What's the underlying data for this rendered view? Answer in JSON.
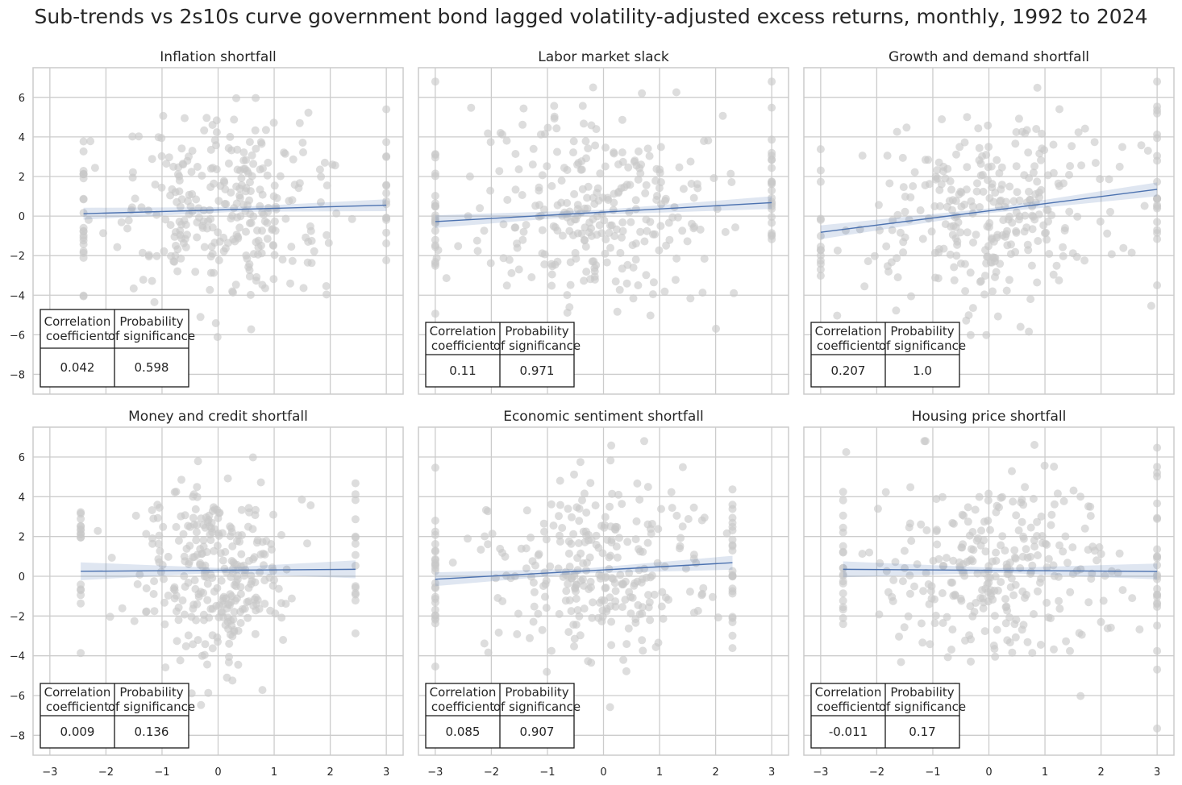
{
  "title": "Sub-trends vs 2s10s curve government bond lagged volatility-adjusted excess returns, monthly, 1992 to 2024",
  "colors": {
    "background": "#ffffff",
    "grid": "#cccccc",
    "frame": "#cccccc",
    "scatter": "#c8c8c8",
    "regression_line": "#4c72b0",
    "confidence_band": "#4c72b0",
    "table_border": "#1a1a1a"
  },
  "table_headers": [
    "Correlation\ncoefficient",
    "Probability\nof significance"
  ],
  "chart_data": [
    {
      "type": "scatter",
      "title": "Inflation shortfall",
      "xlim": [
        -3.3,
        3.3
      ],
      "ylim": [
        -9,
        7.5
      ],
      "xticks": [
        -3,
        -2,
        -1,
        0,
        1,
        2,
        3
      ],
      "yticks": [
        -8,
        -6,
        -4,
        -2,
        0,
        2,
        4,
        6
      ],
      "x_range": [
        -2.4,
        3.0
      ],
      "slope": 0.08,
      "intercept": 0.3,
      "spread_x": 1.0,
      "regression": {
        "x": [
          -2.4,
          3.0
        ],
        "y": [
          0.12,
          0.55
        ]
      },
      "ci_halfwidth": [
        0.3,
        0.12,
        0.3
      ],
      "table": {
        "correlation": "0.042",
        "probability": "0.598"
      },
      "table_pos": "lower-left-high"
    },
    {
      "type": "scatter",
      "title": "Labor market slack",
      "xlim": [
        -3.3,
        3.3
      ],
      "ylim": [
        -9,
        7.5
      ],
      "xticks": [
        -3,
        -2,
        -1,
        0,
        1,
        2,
        3
      ],
      "yticks": [
        -8,
        -6,
        -4,
        -2,
        0,
        2,
        4,
        6
      ],
      "x_range": [
        -3.0,
        3.0
      ],
      "slope": 0.16,
      "intercept": 0.2,
      "spread_x": 1.2,
      "regression": {
        "x": [
          -3.0,
          3.0
        ],
        "y": [
          -0.28,
          0.68
        ]
      },
      "ci_halfwidth": [
        0.32,
        0.12,
        0.32
      ],
      "table": {
        "correlation": "0.11",
        "probability": "0.971"
      },
      "table_pos": "lower-left"
    },
    {
      "type": "scatter",
      "title": "Growth and demand shortfall",
      "xlim": [
        -3.3,
        3.3
      ],
      "ylim": [
        -9,
        7.5
      ],
      "xticks": [
        -3,
        -2,
        -1,
        0,
        1,
        2,
        3
      ],
      "yticks": [
        -8,
        -6,
        -4,
        -2,
        0,
        2,
        4,
        6
      ],
      "x_range": [
        -3.0,
        3.0
      ],
      "slope": 0.36,
      "intercept": 0.25,
      "spread_x": 1.2,
      "regression": {
        "x": [
          -3.0,
          3.0
        ],
        "y": [
          -0.82,
          1.35
        ]
      },
      "ci_halfwidth": [
        0.35,
        0.12,
        0.35
      ],
      "table": {
        "correlation": "0.207",
        "probability": "1.0"
      },
      "table_pos": "lower-left"
    },
    {
      "type": "scatter",
      "title": "Money and credit shortfall",
      "xlim": [
        -3.3,
        3.3
      ],
      "ylim": [
        -9,
        7.5
      ],
      "xticks": [
        -3,
        -2,
        -1,
        0,
        1,
        2,
        3
      ],
      "yticks": [
        -8,
        -6,
        -4,
        -2,
        0,
        2,
        4,
        6
      ],
      "x_range": [
        -2.45,
        2.45
      ],
      "slope": 0.02,
      "intercept": 0.3,
      "spread_x": 0.7,
      "regression": {
        "x": [
          -2.45,
          2.45
        ],
        "y": [
          0.25,
          0.35
        ]
      },
      "ci_halfwidth": [
        0.45,
        0.12,
        0.45
      ],
      "table": {
        "correlation": "0.009",
        "probability": "0.136"
      },
      "table_pos": "lower-left"
    },
    {
      "type": "scatter",
      "title": "Economic sentiment shortfall",
      "xlim": [
        -3.3,
        3.3
      ],
      "ylim": [
        -9,
        7.5
      ],
      "xticks": [
        -3,
        -2,
        -1,
        0,
        1,
        2,
        3
      ],
      "yticks": [
        -8,
        -6,
        -4,
        -2,
        0,
        2,
        4,
        6
      ],
      "x_range": [
        -3.0,
        2.3
      ],
      "slope": 0.15,
      "intercept": 0.3,
      "spread_x": 1.1,
      "regression": {
        "x": [
          -3.0,
          2.3
        ],
        "y": [
          -0.15,
          0.68
        ]
      },
      "ci_halfwidth": [
        0.35,
        0.12,
        0.35
      ],
      "table": {
        "correlation": "0.085",
        "probability": "0.907"
      },
      "table_pos": "lower-left"
    },
    {
      "type": "scatter",
      "title": "Housing price shortfall",
      "xlim": [
        -3.3,
        3.3
      ],
      "ylim": [
        -9,
        7.5
      ],
      "xticks": [
        -3,
        -2,
        -1,
        0,
        1,
        2,
        3
      ],
      "yticks": [
        -8,
        -6,
        -4,
        -2,
        0,
        2,
        4,
        6
      ],
      "x_range": [
        -2.6,
        3.0
      ],
      "slope": -0.02,
      "intercept": 0.3,
      "spread_x": 1.1,
      "regression": {
        "x": [
          -2.6,
          3.0
        ],
        "y": [
          0.35,
          0.24
        ]
      },
      "ci_halfwidth": [
        0.4,
        0.12,
        0.4
      ],
      "table": {
        "correlation": "-0.011",
        "probability": "0.17"
      },
      "table_pos": "lower-left"
    }
  ]
}
